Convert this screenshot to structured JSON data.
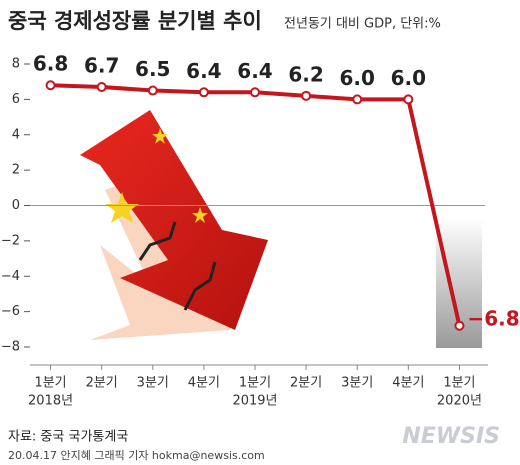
{
  "chart_data": {
    "type": "line",
    "title": "중국 경제성장률 분기별 추이",
    "subtitle": "전년동기 대비 GDP, 단위:%",
    "categories": [
      "1분기",
      "2분기",
      "3분기",
      "4분기",
      "1분기",
      "2분기",
      "3분기",
      "4분기",
      "1분기"
    ],
    "years": [
      "2018년",
      null,
      null,
      null,
      "2019년",
      null,
      null,
      null,
      "2020년"
    ],
    "values": [
      6.8,
      6.7,
      6.5,
      6.4,
      6.4,
      6.2,
      6.0,
      6.0,
      -6.8
    ],
    "value_labels": [
      "6.8",
      "6.7",
      "6.5",
      "6.4",
      "6.4",
      "6.2",
      "6.0",
      "6.0",
      "−6.8"
    ],
    "color": "#c4161c",
    "ylim": [
      -8,
      8
    ],
    "yticks": [
      8,
      6,
      4,
      2,
      0,
      {
        "value": -2,
        "label": "−2"
      },
      {
        "value": -4,
        "label": "−4"
      },
      {
        "value": -6,
        "label": "−6"
      },
      {
        "value": -8,
        "label": "−8"
      }
    ],
    "source": "자료: 중국 국가통계국",
    "credit": "20.04.17  안지혜 그래픽 기자 hokma@newsis.com",
    "logo": "NEWSIS"
  }
}
